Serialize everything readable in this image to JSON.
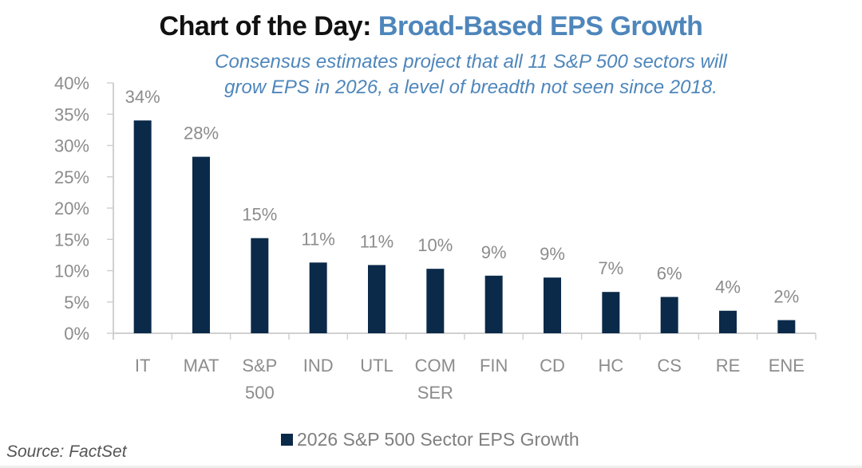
{
  "header": {
    "title_prefix": "Chart of the Day:",
    "title_highlight": "Broad-Based EPS Growth",
    "subtitle_line1": "Consensus estimates project that all 11 S&P 500 sectors will",
    "subtitle_line2": "grow EPS in 2026, a level of breadth not seen since 2018."
  },
  "footer": {
    "source": "Source: FactSet"
  },
  "colors": {
    "bar": "#0b2a4a",
    "accent": "#4e86bb",
    "axis": "#d0d0d0",
    "label": "#8c8c8c"
  },
  "chart_data": {
    "type": "bar",
    "title": "Chart of the Day: Broad-Based EPS Growth",
    "subtitle": "Consensus estimates project that all 11 S&P 500 sectors will grow EPS in 2026, a level of breadth not seen since 2018.",
    "xlabel": "",
    "ylabel": "",
    "categories": [
      "IT",
      "MAT",
      "S&P 500",
      "IND",
      "UTL",
      "COM SER",
      "FIN",
      "CD",
      "HC",
      "CS",
      "RE",
      "ENE"
    ],
    "category_lines": [
      [
        "IT"
      ],
      [
        "MAT"
      ],
      [
        "S&P",
        "500"
      ],
      [
        "IND"
      ],
      [
        "UTL"
      ],
      [
        "COM",
        "SER"
      ],
      [
        "FIN"
      ],
      [
        "CD"
      ],
      [
        "HC"
      ],
      [
        "CS"
      ],
      [
        "RE"
      ],
      [
        "ENE"
      ]
    ],
    "series": [
      {
        "name": "2026 S&P 500 Sector EPS Growth",
        "values": [
          34.0,
          28.2,
          15.2,
          11.3,
          10.9,
          10.3,
          9.2,
          8.9,
          6.6,
          5.8,
          3.6,
          2.1
        ],
        "data_labels": [
          "34%",
          "28%",
          "15%",
          "11%",
          "11%",
          "10%",
          "9%",
          "9%",
          "7%",
          "6%",
          "4%",
          "2%"
        ]
      }
    ],
    "ylim": [
      0,
      40
    ],
    "yticks": [
      0,
      5,
      10,
      15,
      20,
      25,
      30,
      35,
      40
    ],
    "ytick_labels": [
      "0%",
      "5%",
      "10%",
      "15%",
      "20%",
      "25%",
      "30%",
      "35%",
      "40%"
    ],
    "grid": false,
    "legend": {
      "position": "bottom",
      "entries": [
        "2026 S&P 500 Sector EPS Growth"
      ]
    },
    "source": "Source: FactSet"
  }
}
